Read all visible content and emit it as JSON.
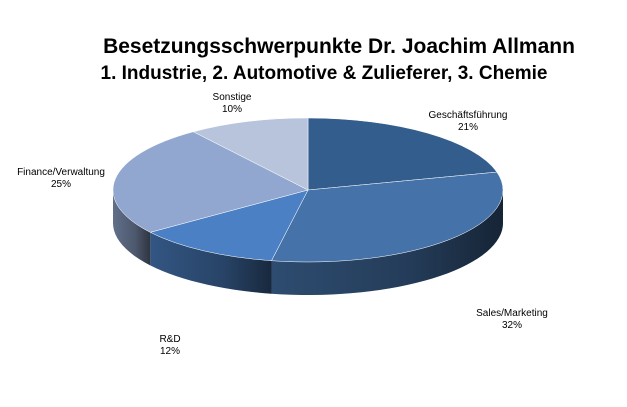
{
  "chart_data": {
    "type": "pie",
    "style": "3d",
    "title": "Besetzungsschwerpunkte Dr. Joachim Allmann",
    "subtitle": "1. Industrie, 2. Automotive & Zulieferer, 3. Chemie",
    "slices": [
      {
        "label": "Geschäftsführung",
        "value": 21,
        "value_label": "21%",
        "color": "#335d8d"
      },
      {
        "label": "Sales/Marketing",
        "value": 32,
        "value_label": "32%",
        "color": "#4472a9"
      },
      {
        "label": "R&D",
        "value": 12,
        "value_label": "12%",
        "color": "#4b80c4"
      },
      {
        "label": "Finance/Verwaltung",
        "value": 25,
        "value_label": "25%",
        "color": "#92a7cf"
      },
      {
        "label": "Sonstige",
        "value": 10,
        "value_label": "10%",
        "color": "#b7c4dc"
      }
    ],
    "legend": "none"
  }
}
